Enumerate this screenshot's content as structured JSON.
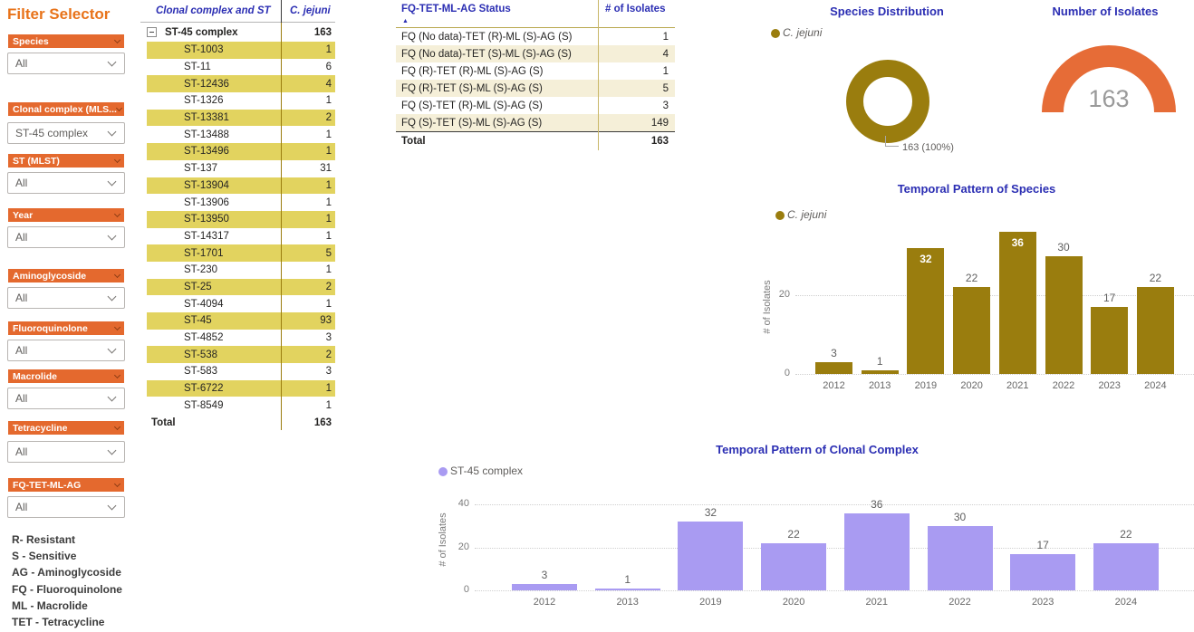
{
  "colors": {
    "accent_orange": "#e8731a",
    "slicer_header_orange": "#e4692e",
    "title_blue": "#2b2eb3",
    "gold": "#9a7d0e",
    "purple": "#a99bf2",
    "gauge_orange": "#e66c37",
    "yellow_row": "#e2d35f",
    "cream_row": "#f5efd8"
  },
  "filter_panel": {
    "title": "Filter Selector",
    "filters": [
      {
        "label": "Species",
        "value": "All"
      },
      {
        "label": "Clonal complex (MLS...",
        "value": "ST-45 complex"
      },
      {
        "label": "ST (MLST)",
        "value": "All"
      },
      {
        "label": "Year",
        "value": "All"
      },
      {
        "label": "Aminoglycoside",
        "value": "All"
      },
      {
        "label": "Fluoroquinolone",
        "value": "All"
      },
      {
        "label": "Macrolide",
        "value": "All"
      },
      {
        "label": "Tetracycline",
        "value": "All"
      },
      {
        "label": "FQ-TET-ML-AG",
        "value": "All"
      }
    ],
    "abbreviations": [
      "R- Resistant",
      "S - Sensitive",
      "AG - Aminoglycoside",
      "FQ - Fluoroquinolone",
      "ML - Macrolide",
      "TET - Tetracycline"
    ]
  },
  "st_table": {
    "col1_header": "Clonal complex and ST",
    "col2_header": "C. jejuni",
    "group_row": {
      "label": "ST-45 complex",
      "value": "163"
    },
    "rows": [
      {
        "label": "ST-1003",
        "value": "1"
      },
      {
        "label": "ST-11",
        "value": "6"
      },
      {
        "label": "ST-12436",
        "value": "4"
      },
      {
        "label": "ST-1326",
        "value": "1"
      },
      {
        "label": "ST-13381",
        "value": "2"
      },
      {
        "label": "ST-13488",
        "value": "1"
      },
      {
        "label": "ST-13496",
        "value": "1"
      },
      {
        "label": "ST-137",
        "value": "31"
      },
      {
        "label": "ST-13904",
        "value": "1"
      },
      {
        "label": "ST-13906",
        "value": "1"
      },
      {
        "label": "ST-13950",
        "value": "1"
      },
      {
        "label": "ST-14317",
        "value": "1"
      },
      {
        "label": "ST-1701",
        "value": "5"
      },
      {
        "label": "ST-230",
        "value": "1"
      },
      {
        "label": "ST-25",
        "value": "2"
      },
      {
        "label": "ST-4094",
        "value": "1"
      },
      {
        "label": "ST-45",
        "value": "93"
      },
      {
        "label": "ST-4852",
        "value": "3"
      },
      {
        "label": "ST-538",
        "value": "2"
      },
      {
        "label": "ST-583",
        "value": "3"
      },
      {
        "label": "ST-6722",
        "value": "1"
      },
      {
        "label": "ST-8549",
        "value": "1"
      }
    ],
    "total_label": "Total",
    "total_value": "163"
  },
  "status_table": {
    "col1_header": "FQ-TET-ML-AG Status",
    "col2_header": "# of Isolates",
    "rows": [
      {
        "label": "FQ (No data)-TET (R)-ML (S)-AG (S)",
        "value": "1"
      },
      {
        "label": "FQ (No data)-TET (S)-ML (S)-AG (S)",
        "value": "4"
      },
      {
        "label": "FQ (R)-TET (R)-ML (S)-AG (S)",
        "value": "1"
      },
      {
        "label": "FQ (R)-TET (S)-ML (S)-AG (S)",
        "value": "5"
      },
      {
        "label": "FQ (S)-TET (R)-ML (S)-AG (S)",
        "value": "3"
      },
      {
        "label": "FQ (S)-TET (S)-ML (S)-AG (S)",
        "value": "149"
      }
    ],
    "total_label": "Total",
    "total_value": "163"
  },
  "chart_data": [
    {
      "type": "pie",
      "title": "Species Distribution",
      "legend_entries": [
        "C. jejuni"
      ],
      "labels": [
        "C. jejuni"
      ],
      "values": [
        163
      ],
      "data_label": "163 (100%)",
      "color": "#9a7d0e",
      "legend_position": "top-left"
    },
    {
      "type": "gauge",
      "title": "Number of Isolates",
      "value": "163",
      "color": "#e66c37"
    },
    {
      "type": "bar",
      "title": "Temporal Pattern of Species",
      "legend_entries": [
        "C. jejuni"
      ],
      "categories": [
        "2012",
        "2013",
        "2019",
        "2020",
        "2021",
        "2022",
        "2023",
        "2024"
      ],
      "values": [
        3,
        1,
        32,
        22,
        36,
        30,
        17,
        22
      ],
      "xlabel": "",
      "ylabel": "# of Isolates",
      "yticks": [
        0,
        20
      ],
      "ylim": [
        0,
        38
      ],
      "color": "#9a7d0e",
      "grid": "dotted",
      "legend_position": "top-left"
    },
    {
      "type": "bar",
      "title": "Temporal Pattern of Clonal Complex",
      "legend_entries": [
        "ST-45 complex"
      ],
      "categories": [
        "2012",
        "2013",
        "2019",
        "2020",
        "2021",
        "2022",
        "2023",
        "2024"
      ],
      "values": [
        3,
        1,
        32,
        22,
        36,
        30,
        17,
        22
      ],
      "xlabel": "",
      "ylabel": "# of Isolates",
      "yticks": [
        0,
        20,
        40
      ],
      "ylim": [
        0,
        42
      ],
      "color": "#a99bf2",
      "grid": "dotted",
      "legend_position": "top-left"
    }
  ]
}
